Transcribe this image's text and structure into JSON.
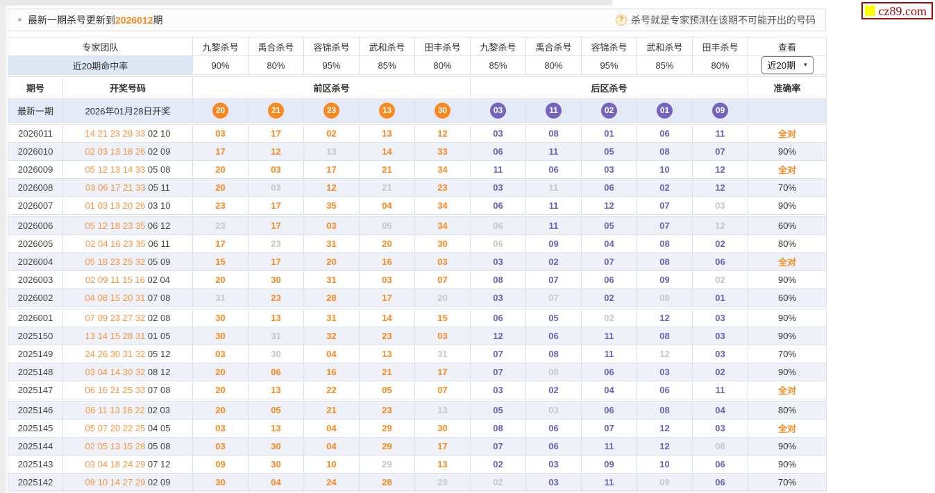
{
  "notice": {
    "prefix": "最新一期杀号更新到",
    "issue": "2026012",
    "suffix": "期",
    "help_icon_glyph": "?",
    "help_text": "杀号就是专家预测在该期不可能开出的号码"
  },
  "logo": {
    "text": "cz89.com",
    "border_color": "#9e0b0f",
    "square_color": "#ffff00"
  },
  "experts": {
    "team_label": "专家团队",
    "rate_label": "近20期命中率",
    "front_names": [
      "九黎杀号",
      "禹合杀号",
      "容锦杀号",
      "武和杀号",
      "田丰杀号"
    ],
    "back_names": [
      "九黎杀号",
      "禹合杀号",
      "容锦杀号",
      "武和杀号",
      "田丰杀号"
    ],
    "front_rates": [
      "90%",
      "80%",
      "95%",
      "85%",
      "80%"
    ],
    "back_rates": [
      "85%",
      "80%",
      "95%",
      "85%",
      "80%"
    ],
    "view_label": "查看",
    "range_value": "近20期",
    "dropdown_arrow_glyph": "▾"
  },
  "columns": {
    "issue": "期号",
    "draw": "开奖号码",
    "front_kill": "前区杀号",
    "back_kill": "后区杀号",
    "accuracy": "准确率"
  },
  "latest": {
    "label": "最新一期",
    "date": "2026年01月28日开奖",
    "front_balls": [
      "20",
      "21",
      "23",
      "13",
      "30"
    ],
    "back_balls": [
      "03",
      "11",
      "02",
      "01",
      "09"
    ]
  },
  "colors": {
    "kill_front": "#f8891e",
    "kill_back": "#6e5fb7",
    "miss": "#c7c7c7",
    "header_blue": "#3a74b8"
  },
  "rows": [
    {
      "issue": "2026011",
      "front": "14 21 23 29 33",
      "back": "02 10",
      "front_kills": [
        {
          "v": "03",
          "hit": true
        },
        {
          "v": "17",
          "hit": true
        },
        {
          "v": "02",
          "hit": true
        },
        {
          "v": "13",
          "hit": true
        },
        {
          "v": "12",
          "hit": true
        }
      ],
      "back_kills": [
        {
          "v": "03",
          "hit": true
        },
        {
          "v": "08",
          "hit": true
        },
        {
          "v": "01",
          "hit": true
        },
        {
          "v": "06",
          "hit": true
        },
        {
          "v": "11",
          "hit": true
        }
      ],
      "accuracy": "全对"
    },
    {
      "issue": "2026010",
      "front": "02 03 13 18 26",
      "back": "02 09",
      "front_kills": [
        {
          "v": "17",
          "hit": true
        },
        {
          "v": "12",
          "hit": true
        },
        {
          "v": "13",
          "hit": false
        },
        {
          "v": "14",
          "hit": true
        },
        {
          "v": "33",
          "hit": true
        }
      ],
      "back_kills": [
        {
          "v": "06",
          "hit": true
        },
        {
          "v": "11",
          "hit": true
        },
        {
          "v": "05",
          "hit": true
        },
        {
          "v": "08",
          "hit": true
        },
        {
          "v": "07",
          "hit": true
        }
      ],
      "accuracy": "90%"
    },
    {
      "issue": "2026009",
      "front": "05 12 13 14 33",
      "back": "05 08",
      "front_kills": [
        {
          "v": "20",
          "hit": true
        },
        {
          "v": "03",
          "hit": true
        },
        {
          "v": "17",
          "hit": true
        },
        {
          "v": "21",
          "hit": true
        },
        {
          "v": "34",
          "hit": true
        }
      ],
      "back_kills": [
        {
          "v": "11",
          "hit": true
        },
        {
          "v": "06",
          "hit": true
        },
        {
          "v": "03",
          "hit": true
        },
        {
          "v": "10",
          "hit": true
        },
        {
          "v": "12",
          "hit": true
        }
      ],
      "accuracy": "全对"
    },
    {
      "issue": "2026008",
      "front": "03 06 17 21 33",
      "back": "05 11",
      "front_kills": [
        {
          "v": "20",
          "hit": true
        },
        {
          "v": "03",
          "hit": false
        },
        {
          "v": "12",
          "hit": true
        },
        {
          "v": "21",
          "hit": false
        },
        {
          "v": "23",
          "hit": true
        }
      ],
      "back_kills": [
        {
          "v": "03",
          "hit": true
        },
        {
          "v": "11",
          "hit": false
        },
        {
          "v": "06",
          "hit": true
        },
        {
          "v": "02",
          "hit": true
        },
        {
          "v": "12",
          "hit": true
        }
      ],
      "accuracy": "70%"
    },
    {
      "issue": "2026007",
      "front": "01 03 13 20 26",
      "back": "03 10",
      "front_kills": [
        {
          "v": "23",
          "hit": true
        },
        {
          "v": "17",
          "hit": true
        },
        {
          "v": "35",
          "hit": true
        },
        {
          "v": "04",
          "hit": true
        },
        {
          "v": "34",
          "hit": true
        }
      ],
      "back_kills": [
        {
          "v": "06",
          "hit": true
        },
        {
          "v": "11",
          "hit": true
        },
        {
          "v": "12",
          "hit": true
        },
        {
          "v": "07",
          "hit": true
        },
        {
          "v": "03",
          "hit": false
        }
      ],
      "accuracy": "90%"
    },
    {
      "issue": "2026006",
      "front": "05 12 18 23 35",
      "back": "06 12",
      "front_kills": [
        {
          "v": "23",
          "hit": false
        },
        {
          "v": "17",
          "hit": true
        },
        {
          "v": "03",
          "hit": true
        },
        {
          "v": "05",
          "hit": false
        },
        {
          "v": "34",
          "hit": true
        }
      ],
      "back_kills": [
        {
          "v": "06",
          "hit": false
        },
        {
          "v": "11",
          "hit": true
        },
        {
          "v": "05",
          "hit": true
        },
        {
          "v": "07",
          "hit": true
        },
        {
          "v": "12",
          "hit": false
        }
      ],
      "accuracy": "60%"
    },
    {
      "issue": "2026005",
      "front": "02 04 16 23 35",
      "back": "06 11",
      "front_kills": [
        {
          "v": "17",
          "hit": true
        },
        {
          "v": "23",
          "hit": false
        },
        {
          "v": "31",
          "hit": true
        },
        {
          "v": "20",
          "hit": true
        },
        {
          "v": "30",
          "hit": true
        }
      ],
      "back_kills": [
        {
          "v": "06",
          "hit": false
        },
        {
          "v": "09",
          "hit": true
        },
        {
          "v": "04",
          "hit": true
        },
        {
          "v": "08",
          "hit": true
        },
        {
          "v": "02",
          "hit": true
        }
      ],
      "accuracy": "80%"
    },
    {
      "issue": "2026004",
      "front": "05 18 23 25 32",
      "back": "05 09",
      "front_kills": [
        {
          "v": "15",
          "hit": true
        },
        {
          "v": "17",
          "hit": true
        },
        {
          "v": "20",
          "hit": true
        },
        {
          "v": "16",
          "hit": true
        },
        {
          "v": "03",
          "hit": true
        }
      ],
      "back_kills": [
        {
          "v": "03",
          "hit": true
        },
        {
          "v": "02",
          "hit": true
        },
        {
          "v": "07",
          "hit": true
        },
        {
          "v": "08",
          "hit": true
        },
        {
          "v": "06",
          "hit": true
        }
      ],
      "accuracy": "全对"
    },
    {
      "issue": "2026003",
      "front": "02 09 11 15 16",
      "back": "02 04",
      "front_kills": [
        {
          "v": "20",
          "hit": true
        },
        {
          "v": "30",
          "hit": true
        },
        {
          "v": "31",
          "hit": true
        },
        {
          "v": "03",
          "hit": true
        },
        {
          "v": "07",
          "hit": true
        }
      ],
      "back_kills": [
        {
          "v": "08",
          "hit": true
        },
        {
          "v": "07",
          "hit": true
        },
        {
          "v": "06",
          "hit": true
        },
        {
          "v": "09",
          "hit": true
        },
        {
          "v": "02",
          "hit": false
        }
      ],
      "accuracy": "90%"
    },
    {
      "issue": "2026002",
      "front": "04 08 15 20 31",
      "back": "07 08",
      "front_kills": [
        {
          "v": "31",
          "hit": false
        },
        {
          "v": "23",
          "hit": true
        },
        {
          "v": "28",
          "hit": true
        },
        {
          "v": "17",
          "hit": true
        },
        {
          "v": "20",
          "hit": false
        }
      ],
      "back_kills": [
        {
          "v": "03",
          "hit": true
        },
        {
          "v": "07",
          "hit": false
        },
        {
          "v": "02",
          "hit": true
        },
        {
          "v": "08",
          "hit": false
        },
        {
          "v": "01",
          "hit": true
        }
      ],
      "accuracy": "60%"
    },
    {
      "issue": "2026001",
      "front": "07 09 23 27 32",
      "back": "02 08",
      "front_kills": [
        {
          "v": "30",
          "hit": true
        },
        {
          "v": "13",
          "hit": true
        },
        {
          "v": "31",
          "hit": true
        },
        {
          "v": "14",
          "hit": true
        },
        {
          "v": "15",
          "hit": true
        }
      ],
      "back_kills": [
        {
          "v": "06",
          "hit": true
        },
        {
          "v": "05",
          "hit": true
        },
        {
          "v": "02",
          "hit": false
        },
        {
          "v": "12",
          "hit": true
        },
        {
          "v": "03",
          "hit": true
        }
      ],
      "accuracy": "90%"
    },
    {
      "issue": "2025150",
      "front": "13 14 15 28 31",
      "back": "01 05",
      "front_kills": [
        {
          "v": "30",
          "hit": true
        },
        {
          "v": "31",
          "hit": false
        },
        {
          "v": "32",
          "hit": true
        },
        {
          "v": "23",
          "hit": true
        },
        {
          "v": "03",
          "hit": true
        }
      ],
      "back_kills": [
        {
          "v": "12",
          "hit": true
        },
        {
          "v": "06",
          "hit": true
        },
        {
          "v": "11",
          "hit": true
        },
        {
          "v": "08",
          "hit": true
        },
        {
          "v": "03",
          "hit": true
        }
      ],
      "accuracy": "90%"
    },
    {
      "issue": "2025149",
      "front": "24 26 30 31 32",
      "back": "05 12",
      "front_kills": [
        {
          "v": "03",
          "hit": true
        },
        {
          "v": "30",
          "hit": false
        },
        {
          "v": "04",
          "hit": true
        },
        {
          "v": "13",
          "hit": true
        },
        {
          "v": "31",
          "hit": false
        }
      ],
      "back_kills": [
        {
          "v": "07",
          "hit": true
        },
        {
          "v": "08",
          "hit": true
        },
        {
          "v": "11",
          "hit": true
        },
        {
          "v": "12",
          "hit": false
        },
        {
          "v": "03",
          "hit": true
        }
      ],
      "accuracy": "70%"
    },
    {
      "issue": "2025148",
      "front": "03 04 14 30 32",
      "back": "08 12",
      "front_kills": [
        {
          "v": "20",
          "hit": true
        },
        {
          "v": "06",
          "hit": true
        },
        {
          "v": "16",
          "hit": true
        },
        {
          "v": "21",
          "hit": true
        },
        {
          "v": "17",
          "hit": true
        }
      ],
      "back_kills": [
        {
          "v": "07",
          "hit": true
        },
        {
          "v": "08",
          "hit": false
        },
        {
          "v": "06",
          "hit": true
        },
        {
          "v": "03",
          "hit": true
        },
        {
          "v": "02",
          "hit": true
        }
      ],
      "accuracy": "90%"
    },
    {
      "issue": "2025147",
      "front": "06 16 21 25 33",
      "back": "07 08",
      "front_kills": [
        {
          "v": "20",
          "hit": true
        },
        {
          "v": "13",
          "hit": true
        },
        {
          "v": "22",
          "hit": true
        },
        {
          "v": "05",
          "hit": true
        },
        {
          "v": "07",
          "hit": true
        }
      ],
      "back_kills": [
        {
          "v": "03",
          "hit": true
        },
        {
          "v": "02",
          "hit": true
        },
        {
          "v": "04",
          "hit": true
        },
        {
          "v": "06",
          "hit": true
        },
        {
          "v": "11",
          "hit": true
        }
      ],
      "accuracy": "全对"
    },
    {
      "issue": "2025146",
      "front": "06 11 13 16 22",
      "back": "02 03",
      "front_kills": [
        {
          "v": "20",
          "hit": true
        },
        {
          "v": "05",
          "hit": true
        },
        {
          "v": "21",
          "hit": true
        },
        {
          "v": "23",
          "hit": true
        },
        {
          "v": "13",
          "hit": false
        }
      ],
      "back_kills": [
        {
          "v": "05",
          "hit": true
        },
        {
          "v": "03",
          "hit": false
        },
        {
          "v": "06",
          "hit": true
        },
        {
          "v": "08",
          "hit": true
        },
        {
          "v": "04",
          "hit": true
        }
      ],
      "accuracy": "80%"
    },
    {
      "issue": "2025145",
      "front": "05 07 20 22 25",
      "back": "04 05",
      "front_kills": [
        {
          "v": "03",
          "hit": true
        },
        {
          "v": "13",
          "hit": true
        },
        {
          "v": "04",
          "hit": true
        },
        {
          "v": "29",
          "hit": true
        },
        {
          "v": "30",
          "hit": true
        }
      ],
      "back_kills": [
        {
          "v": "08",
          "hit": true
        },
        {
          "v": "06",
          "hit": true
        },
        {
          "v": "07",
          "hit": true
        },
        {
          "v": "12",
          "hit": true
        },
        {
          "v": "03",
          "hit": true
        }
      ],
      "accuracy": "全对"
    },
    {
      "issue": "2025144",
      "front": "02 05 13 15 28",
      "back": "05 08",
      "front_kills": [
        {
          "v": "03",
          "hit": true
        },
        {
          "v": "30",
          "hit": true
        },
        {
          "v": "04",
          "hit": true
        },
        {
          "v": "29",
          "hit": true
        },
        {
          "v": "17",
          "hit": true
        }
      ],
      "back_kills": [
        {
          "v": "07",
          "hit": true
        },
        {
          "v": "06",
          "hit": true
        },
        {
          "v": "11",
          "hit": true
        },
        {
          "v": "12",
          "hit": true
        },
        {
          "v": "08",
          "hit": false
        }
      ],
      "accuracy": "90%"
    },
    {
      "issue": "2025143",
      "front": "03 04 18 24 29",
      "back": "07 12",
      "front_kills": [
        {
          "v": "09",
          "hit": true
        },
        {
          "v": "30",
          "hit": true
        },
        {
          "v": "10",
          "hit": true
        },
        {
          "v": "29",
          "hit": false
        },
        {
          "v": "13",
          "hit": true
        }
      ],
      "back_kills": [
        {
          "v": "02",
          "hit": true
        },
        {
          "v": "03",
          "hit": true
        },
        {
          "v": "09",
          "hit": true
        },
        {
          "v": "10",
          "hit": true
        },
        {
          "v": "06",
          "hit": true
        }
      ],
      "accuracy": "90%"
    },
    {
      "issue": "2025142",
      "front": "09 10 14 27 29",
      "back": "02 09",
      "front_kills": [
        {
          "v": "30",
          "hit": true
        },
        {
          "v": "04",
          "hit": true
        },
        {
          "v": "24",
          "hit": true
        },
        {
          "v": "28",
          "hit": true
        },
        {
          "v": "29",
          "hit": false
        }
      ],
      "back_kills": [
        {
          "v": "02",
          "hit": false
        },
        {
          "v": "03",
          "hit": true
        },
        {
          "v": "11",
          "hit": true
        },
        {
          "v": "09",
          "hit": false
        },
        {
          "v": "06",
          "hit": true
        }
      ],
      "accuracy": "70%"
    }
  ]
}
